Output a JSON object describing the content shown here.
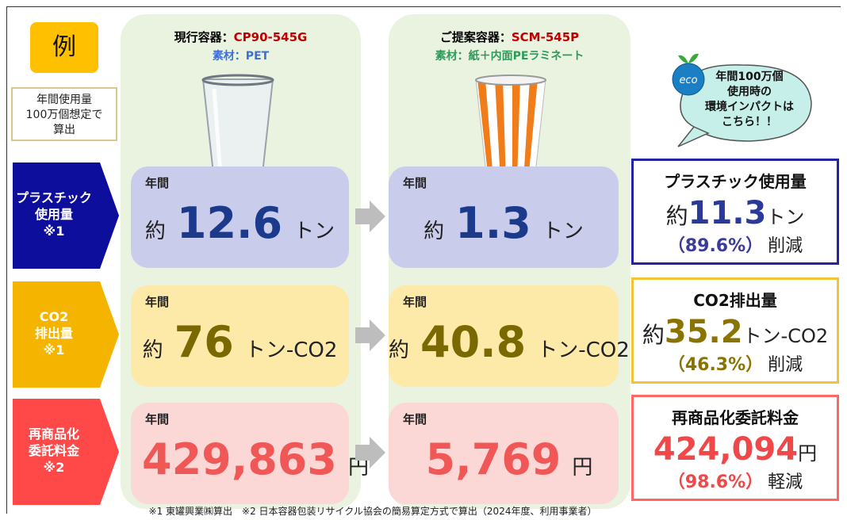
{
  "example_label": "例",
  "note": [
    "年間使用量",
    "100万個想定で",
    "算出"
  ],
  "current": {
    "title_label": "現行容器：",
    "title_value": "CP90-545G",
    "material": "素材：PET"
  },
  "proposed": {
    "title_label": "ご提案容器：",
    "title_value": "SCM-545P",
    "material": "素材：紙＋内面PEラミネート"
  },
  "eco": {
    "badge": "eco",
    "lines": [
      "年間100万個",
      "使用時の",
      "環境インパクトは",
      "こちら！！"
    ]
  },
  "rows": [
    {
      "label": [
        "プラスチック",
        "使用量",
        "※1"
      ],
      "current": {
        "period": "年間",
        "prefix": "約",
        "value": "12.6",
        "unit": "トン"
      },
      "proposed": {
        "period": "年間",
        "prefix": "約",
        "value": "1.3",
        "unit": "トン"
      },
      "result": {
        "title": "プラスチック使用量",
        "prefix": "約",
        "value": "11.3",
        "unit": "トン",
        "percent": "（89.6%）",
        "verb": "削減"
      }
    },
    {
      "label": [
        "CO2",
        "排出量",
        "※1"
      ],
      "current": {
        "period": "年間",
        "prefix": "約",
        "value": "76",
        "unit": "トン-CO2"
      },
      "proposed": {
        "period": "年間",
        "prefix": "約",
        "value": "40.8",
        "unit": "トン-CO2"
      },
      "result": {
        "title": "CO2排出量",
        "prefix": "約",
        "value": "35.2",
        "unit": "トン-CO2",
        "percent": "（46.3%）",
        "verb": "削減"
      }
    },
    {
      "label": [
        "再商品化",
        "委託料金",
        "※2"
      ],
      "current": {
        "period": "年間",
        "value": "429,863",
        "unit": "円"
      },
      "proposed": {
        "period": "年間",
        "value": "5,769",
        "unit": "円"
      },
      "result": {
        "title": "再商品化委託料金",
        "value": "424,094",
        "unit": "円",
        "percent": "（98.6%）",
        "verb": "軽減"
      }
    }
  ],
  "footnote": "※1 東罐興業㈱算出　※2 日本容器包装リサイクル協会の簡易算定方式で算出（2024年度、利用事業者）"
}
